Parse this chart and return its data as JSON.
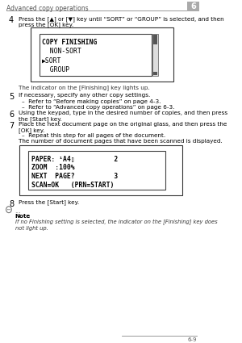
{
  "header_text": "Advanced copy operations",
  "header_chapter": "6",
  "footer_page": "6-9",
  "bg_color": "#ffffff",
  "step4_num": "4",
  "step4_text": "Press the [▲] or [▼] key until “SORT” or “GROUP” is selected, and then\npress the [OK] key.",
  "lcd1_lines": [
    "COPY FINISHING",
    "  NON-SORT",
    "▶SORT",
    "  GROUP"
  ],
  "step4_caption": "The indicator on the [Finishing] key lights up.",
  "step5_num": "5",
  "step5_text": "If necessary, specify any other copy settings.",
  "step5_bullets": [
    "–  Refer to “Before making copies” on page 4-3.",
    "–  Refer to “Advanced copy operations” on page 6-3."
  ],
  "step6_num": "6",
  "step6_text": "Using the keypad, type in the desired number of copies, and then press\nthe [Start] key.",
  "step7_num": "7",
  "step7_text": "Place the next document page on the original glass, and then press the\n[OK] key.",
  "step7_bullet": "–  Repeat this step for all pages of the document.",
  "step7_caption": "The number of document pages that have been scanned is displayed.",
  "lcd2_lines": [
    "PAPER: ¹A4▯          2",
    "ZOOM  :100%",
    "NEXT  PAGE?          3",
    "SCAN=OK   (PRN=START)"
  ],
  "step8_num": "8",
  "step8_text": "Press the [Start] key.",
  "note_title": "Note",
  "note_text": "If no Finishing setting is selected, the indicator on the [Finishing] key does\nnot light up.",
  "font_body": 5.2,
  "font_lcd": 5.8,
  "font_step": 7.0,
  "font_header": 5.5,
  "font_footer": 5.0
}
